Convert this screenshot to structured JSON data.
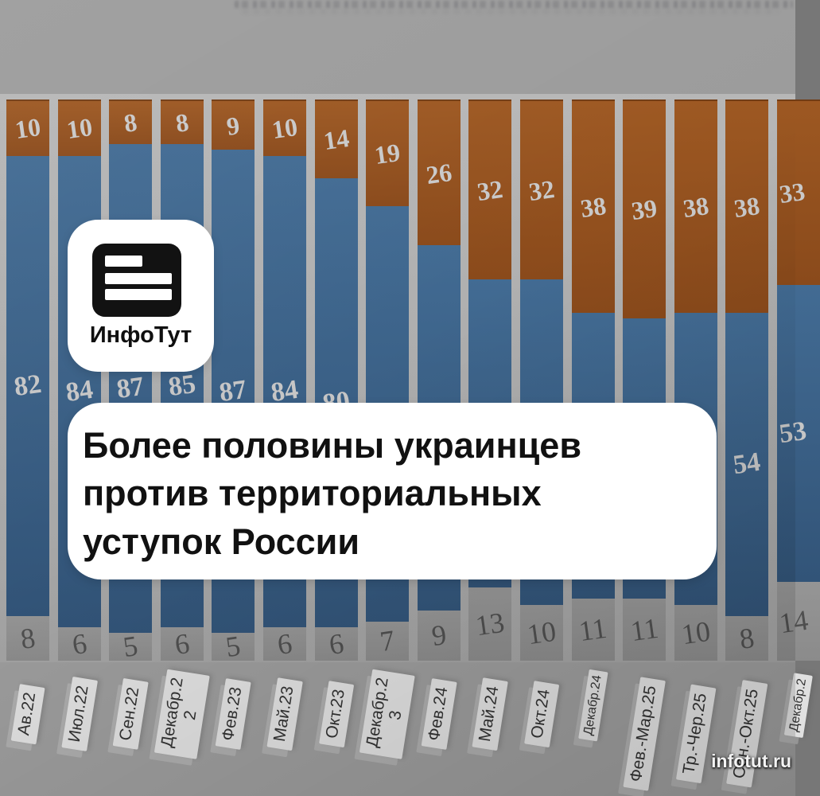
{
  "logo": {
    "name": "ИнфоТут",
    "icon": "news-card-icon"
  },
  "headline": {
    "lines": [
      "Более половины украинцев",
      "против территориальных",
      "уступок России"
    ]
  },
  "watermark": {
    "text": "infotut.ru"
  },
  "colors": {
    "background": "#9c9c9c",
    "bar_orange": "#95511e",
    "bar_blue": "#3a608a",
    "bar_gray": "#909090",
    "value_text": "#c9c9c9",
    "card": "#ffffff"
  },
  "chart_data": {
    "type": "bar",
    "subtype": "stacked-vertical",
    "title": "",
    "xlabel": "",
    "ylabel": "",
    "ylim": [
      0,
      100
    ],
    "grid": false,
    "legend": null,
    "categories": [
      {
        "label": "Ав.22"
      },
      {
        "label": "Июл.22"
      },
      {
        "label": "Сен.22"
      },
      {
        "label": "Декабр.2",
        "line2": "2"
      },
      {
        "label": "Фев.23"
      },
      {
        "label": "Май.23"
      },
      {
        "label": "Окт.23"
      },
      {
        "label": "Декабр.2",
        "line2": "3"
      },
      {
        "label": "Фев.24"
      },
      {
        "label": "Май.24"
      },
      {
        "label": "Окт.24"
      },
      {
        "label": "Декабр.24",
        "small": true
      },
      {
        "label": "Фев.-Мар.25"
      },
      {
        "label": "Тр.-Чер.25"
      },
      {
        "label": "Сен.-Окт.25"
      },
      {
        "label": "Декабр.2",
        "small": true
      }
    ],
    "series": [
      {
        "name": "top-orange-segment",
        "color": "#95511e",
        "values": [
          10,
          10,
          8,
          8,
          9,
          10,
          14,
          19,
          26,
          32,
          32,
          38,
          39,
          38,
          38,
          33
        ],
        "labels": [
          "10",
          "10",
          "8",
          "8",
          "9",
          "10",
          "14",
          "19",
          "26",
          "32",
          "32",
          "38",
          "39",
          "38",
          "38",
          "33"
        ]
      },
      {
        "name": "middle-blue-segment",
        "color": "#3a608a",
        "values": [
          82,
          84,
          87,
          85,
          87,
          84,
          80,
          74,
          65,
          55,
          58,
          51,
          50,
          52,
          54,
          53
        ],
        "labels": [
          "82",
          "84",
          "87",
          "85",
          "87",
          "84",
          "80",
          "",
          "",
          "",
          "",
          "",
          "",
          "",
          "54",
          "53"
        ]
      },
      {
        "name": "bottom-gray-segment",
        "color": "#909090",
        "values": [
          8,
          6,
          5,
          6,
          5,
          6,
          6,
          7,
          9,
          13,
          10,
          11,
          11,
          10,
          8,
          14
        ],
        "labels": [
          "8",
          "6",
          "5",
          "6",
          "5",
          "6",
          "6",
          "7",
          "9",
          "13",
          "10",
          "11",
          "11",
          "10",
          "8",
          "14"
        ]
      }
    ]
  }
}
